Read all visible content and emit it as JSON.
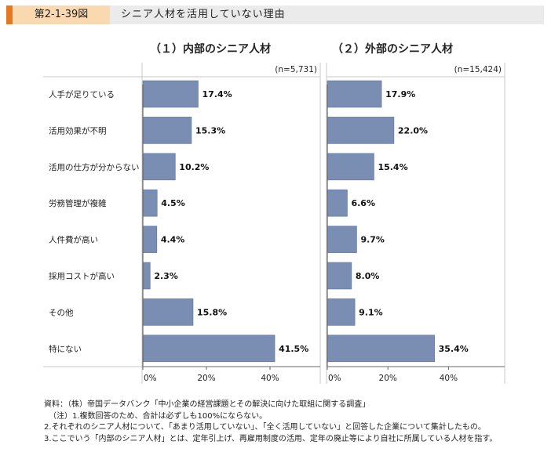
{
  "header": {
    "figure_no": "第2-1-39図",
    "title": "シニア人材を活用していない理由"
  },
  "chart_data": [
    {
      "type": "bar",
      "orientation": "horizontal",
      "title": "（１）内部のシニア人材",
      "n_label": "(n=5,731)",
      "categories": [
        "人手が足りている",
        "活用効果が不明",
        "活用の仕方が分からない",
        "労務管理が複雑",
        "人件費が高い",
        "採用コストが高い",
        "その他",
        "特にない"
      ],
      "values": [
        17.4,
        15.3,
        10.2,
        4.5,
        4.4,
        2.3,
        15.8,
        41.5
      ],
      "value_labels": [
        "17.4%",
        "15.3%",
        "10.2%",
        "4.5%",
        "4.4%",
        "2.3%",
        "15.8%",
        "41.5%"
      ],
      "xticks": [
        "0%",
        "20%",
        "40%"
      ],
      "xlim": [
        0,
        50
      ],
      "bar_color": "#7a8db3"
    },
    {
      "type": "bar",
      "orientation": "horizontal",
      "title": "（２）外部のシニア人材",
      "n_label": "(n=15,424)",
      "categories": [
        "人手が足りている",
        "活用効果が不明",
        "活用の仕方が分からない",
        "労務管理が複雑",
        "人件費が高い",
        "採用コストが高い",
        "その他",
        "特にない"
      ],
      "values": [
        17.9,
        22.0,
        15.4,
        6.6,
        9.7,
        8.0,
        9.1,
        35.4
      ],
      "value_labels": [
        "17.9%",
        "22.0%",
        "15.4%",
        "6.6%",
        "9.7%",
        "8.0%",
        "9.1%",
        "35.4%"
      ],
      "xticks": [
        "0%",
        "20%",
        "40%"
      ],
      "xlim": [
        0,
        50
      ],
      "bar_color": "#7a8db3"
    }
  ],
  "notes": [
    "資料：（株）帝国データバンク「中小企業の経営課題とその解決に向けた取組に関する調査」",
    "（注）1.複数回答のため、合計は必ずしも100%にならない。",
    "2.それぞれのシニア人材について、「あまり活用していない」、「全く活用していない」と回答した企業について集計したもの。",
    "3.ここでいう「内部のシニア人材」とは、定年引上げ、再雇用制度の活用、定年の廃止等により自社に所属している人材を指す。"
  ]
}
